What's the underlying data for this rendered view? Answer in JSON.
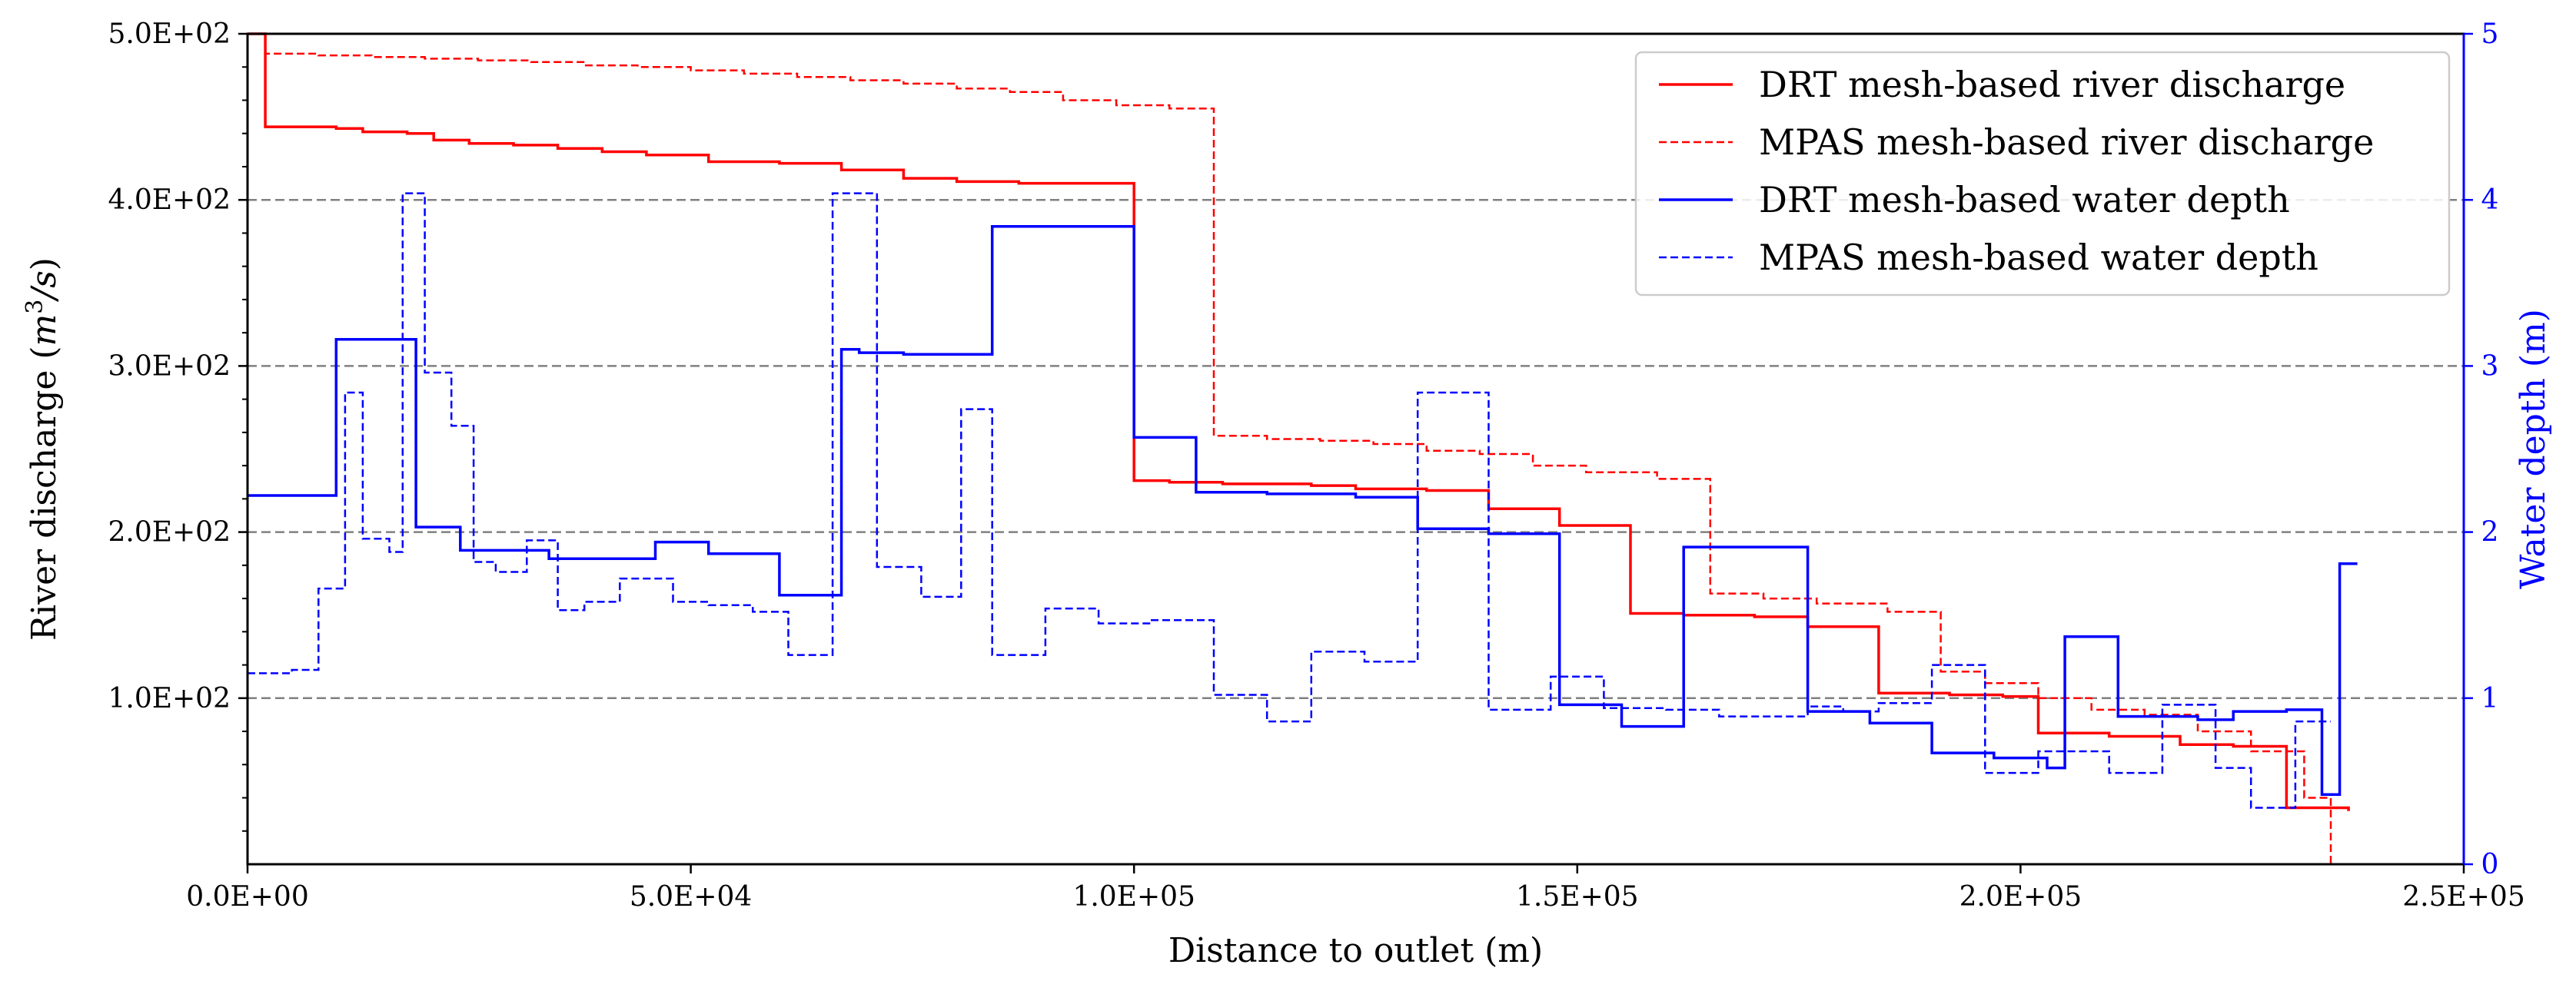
{
  "chart_data": {
    "type": "line",
    "x_axis": {
      "label": "Distance to outlet (m)",
      "lim": [
        0,
        250000
      ],
      "ticks": [
        0,
        50000,
        100000,
        150000,
        200000,
        250000
      ],
      "tick_labels": [
        "0.0E+00",
        "5.0E+04",
        "1.0E+05",
        "1.5E+05",
        "2.0E+05",
        "2.5E+05"
      ]
    },
    "y_left": {
      "label_main": "River discharge (",
      "label_math_base": "m",
      "label_math_sup": "3",
      "label_math_tail": "/s",
      "label_close": ")",
      "lim": [
        0,
        500
      ],
      "ticks": [
        100,
        200,
        300,
        400,
        500
      ],
      "tick_labels": [
        "1.0E+02",
        "2.0E+02",
        "3.0E+02",
        "4.0E+02",
        "5.0E+02"
      ],
      "color": "#000000"
    },
    "y_right": {
      "label": "Water depth (m)",
      "lim": [
        0,
        5
      ],
      "ticks": [
        0,
        1,
        2,
        3,
        4,
        5
      ],
      "tick_labels": [
        "0",
        "1",
        "2",
        "3",
        "4",
        "5"
      ],
      "color": "#0000ff"
    },
    "grid": "horizontal dashed at left-axis major ticks",
    "legend_position": "top-right",
    "series": [
      {
        "name": "DRT mesh-based river discharge",
        "axis": "left",
        "color": "#ff0000",
        "style": "solid",
        "step": true,
        "x": [
          0,
          2000,
          2000,
          10000,
          13000,
          18000,
          21000,
          25000,
          30000,
          35000,
          40000,
          45000,
          52000,
          60000,
          67000,
          74000,
          80000,
          87000,
          100000,
          100000,
          104000,
          110000,
          120000,
          125000,
          133000,
          140000,
          148000,
          156000,
          162000,
          170000,
          176000,
          184000,
          192000,
          198000,
          202000,
          210000,
          218000,
          224000,
          230000,
          237000
        ],
        "y": [
          500,
          500,
          444,
          443,
          441,
          440,
          436,
          434,
          433,
          431,
          429,
          427,
          423,
          422,
          418,
          413,
          411,
          410,
          408,
          231,
          230,
          229,
          228,
          226,
          225,
          214,
          204,
          151,
          150,
          149,
          143,
          103,
          102,
          101,
          79,
          77,
          72,
          71,
          34,
          32
        ]
      },
      {
        "name": "MPAS mesh-based river discharge",
        "axis": "left",
        "color": "#ff0000",
        "style": "dashed",
        "step": true,
        "x": [
          0,
          2000,
          2000,
          8000,
          14000,
          20000,
          26000,
          32000,
          38000,
          44000,
          50000,
          56000,
          62000,
          68000,
          74000,
          80000,
          86000,
          92000,
          98000,
          104000,
          109000,
          109000,
          115000,
          121000,
          127000,
          133000,
          139000,
          145000,
          151000,
          159000,
          165000,
          171000,
          177000,
          185000,
          191000,
          196000,
          202000,
          208000,
          214000,
          220000,
          226000,
          232000,
          235000,
          235000
        ],
        "y": [
          500,
          500,
          488,
          487,
          486,
          485,
          484,
          483,
          481,
          480,
          478,
          476,
          474,
          472,
          470,
          467,
          465,
          460,
          457,
          455,
          453,
          258,
          256,
          255,
          253,
          249,
          247,
          240,
          236,
          232,
          163,
          160,
          157,
          152,
          116,
          109,
          100,
          93,
          90,
          80,
          68,
          40,
          28,
          0
        ]
      },
      {
        "name": "DRT mesh-based water depth",
        "axis": "right",
        "color": "#0000ff",
        "style": "solid",
        "step": true,
        "x": [
          0,
          10000,
          19000,
          24000,
          34000,
          46000,
          52000,
          60000,
          67000,
          69000,
          74000,
          84000,
          100000,
          107000,
          115000,
          125000,
          132000,
          140000,
          148000,
          155000,
          162000,
          176000,
          183000,
          190000,
          197000,
          203000,
          205000,
          211000,
          220000,
          224000,
          230000,
          234000,
          236000,
          236000,
          238000
        ],
        "y": [
          2.22,
          3.16,
          2.03,
          1.89,
          1.84,
          1.94,
          1.87,
          1.62,
          3.1,
          3.08,
          3.07,
          3.84,
          2.57,
          2.24,
          2.23,
          2.21,
          2.02,
          1.99,
          0.96,
          0.83,
          1.91,
          0.92,
          0.85,
          0.67,
          0.64,
          0.58,
          1.37,
          0.89,
          0.87,
          0.92,
          0.93,
          0.42,
          0.42,
          1.81,
          1.81
        ]
      },
      {
        "name": "MPAS mesh-based water depth",
        "axis": "right",
        "color": "#0000ff",
        "style": "dashed",
        "step": true,
        "x": [
          0,
          5000,
          8000,
          11000,
          13000,
          16000,
          17500,
          20000,
          23000,
          25500,
          28000,
          31500,
          35000,
          38000,
          42000,
          48000,
          52000,
          57000,
          61000,
          66000,
          68000,
          71000,
          76000,
          80500,
          84000,
          90000,
          96000,
          102000,
          109000,
          115000,
          120000,
          126000,
          132000,
          138000,
          140000,
          147000,
          153000,
          160000,
          166000,
          176000,
          180000,
          184000,
          190000,
          196000,
          202000,
          210000,
          216000,
          222000,
          226000,
          229000,
          231000,
          235000
        ],
        "y": [
          1.15,
          1.17,
          1.66,
          2.84,
          1.96,
          1.88,
          4.04,
          2.96,
          2.64,
          1.82,
          1.76,
          1.95,
          1.53,
          1.58,
          1.72,
          1.58,
          1.56,
          1.52,
          1.26,
          4.04,
          4.04,
          1.79,
          1.61,
          2.74,
          1.26,
          1.54,
          1.45,
          1.47,
          1.02,
          0.86,
          1.28,
          1.22,
          2.84,
          2.84,
          0.93,
          1.13,
          0.94,
          0.93,
          0.89,
          0.95,
          0.92,
          0.97,
          1.2,
          0.55,
          0.68,
          0.55,
          0.96,
          0.58,
          0.34,
          0.34,
          0.86,
          0.86
        ]
      }
    ]
  }
}
